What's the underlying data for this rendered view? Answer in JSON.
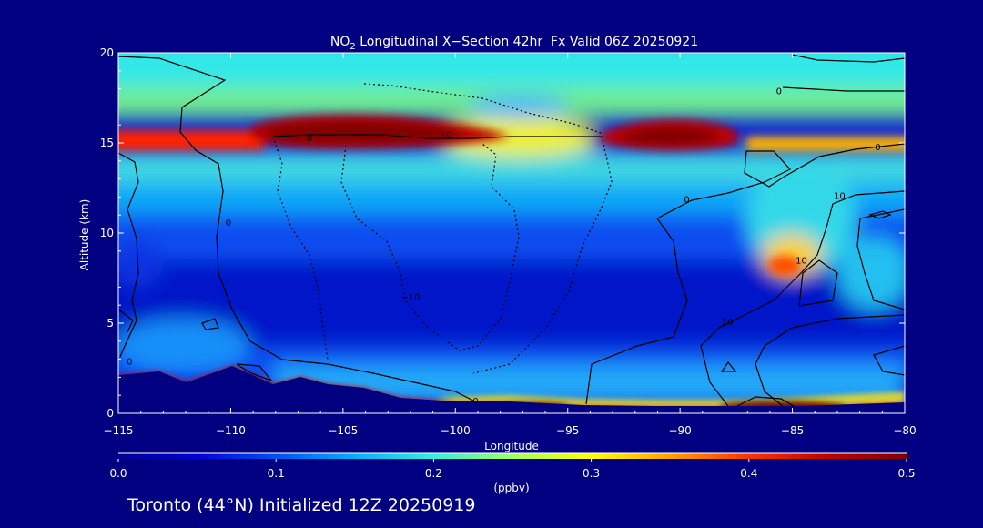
{
  "chart_data": {
    "type": "heatmap",
    "title_prefix": "NO",
    "title_sub": "2",
    "title_rest": " Longitudinal X−Section 42hr  Fx Valid 06Z 20250921",
    "xlabel": "Longitude",
    "ylabel": "Altitude (km)",
    "xlim": [
      -115,
      -80
    ],
    "ylim": [
      0,
      20
    ],
    "x_ticks": [
      -115,
      -110,
      -105,
      -100,
      -95,
      -90,
      -85,
      -80
    ],
    "x_tick_labels": [
      "−115",
      "−110",
      "−105",
      "−100",
      "−95",
      "−90",
      "−85",
      "−80"
    ],
    "y_ticks": [
      0,
      5,
      10,
      15,
      20
    ],
    "y_tick_labels": [
      "0",
      "5",
      "10",
      "15",
      "20"
    ],
    "colorbar": {
      "min": 0.0,
      "max": 0.5,
      "ticks": [
        0.0,
        0.1,
        0.2,
        0.3,
        0.4,
        0.5
      ],
      "tick_labels": [
        "0.0",
        "0.1",
        "0.2",
        "0.3",
        "0.4",
        "0.5"
      ],
      "unit": "(ppbv)",
      "colors": [
        "#000090",
        "#0000d8",
        "#0050f0",
        "#00b0ff",
        "#30f0e0",
        "#a0ff60",
        "#ffff00",
        "#ffa000",
        "#ff3000",
        "#c00000",
        "#800000"
      ]
    },
    "contour_labels": [
      {
        "text": "0",
        "lon": -106.5,
        "alt": 15.3
      },
      {
        "text": "10",
        "lon": -100.4,
        "alt": 15.5
      },
      {
        "text": "0",
        "lon": -89.7,
        "alt": 11.9
      },
      {
        "text": "0",
        "lon": -85.6,
        "alt": 17.9
      },
      {
        "text": "0",
        "lon": -81.2,
        "alt": 14.8
      },
      {
        "text": "10",
        "lon": -82.9,
        "alt": 12.1
      },
      {
        "text": "0",
        "lon": -110.1,
        "alt": 10.6
      },
      {
        "text": "10",
        "lon": -84.6,
        "alt": 8.5
      },
      {
        "text": "−10",
        "lon": -102.0,
        "alt": 6.5
      },
      {
        "text": "10",
        "lon": -87.9,
        "alt": 5.1
      },
      {
        "text": "0",
        "lon": -114.5,
        "alt": 2.9
      },
      {
        "text": "0",
        "lon": -99.1,
        "alt": 0.7
      }
    ],
    "fields": {
      "background_ppbv": 0.06,
      "surface_band_ppbv": 0.5,
      "upper_layer_ppbv": 0.25,
      "high_core_lon": [
        -108,
        -103,
        -91,
        -115
      ],
      "high_core_alt": 15.2
    }
  },
  "footer": "Toronto (44°N) Initialized 12Z 20250919"
}
